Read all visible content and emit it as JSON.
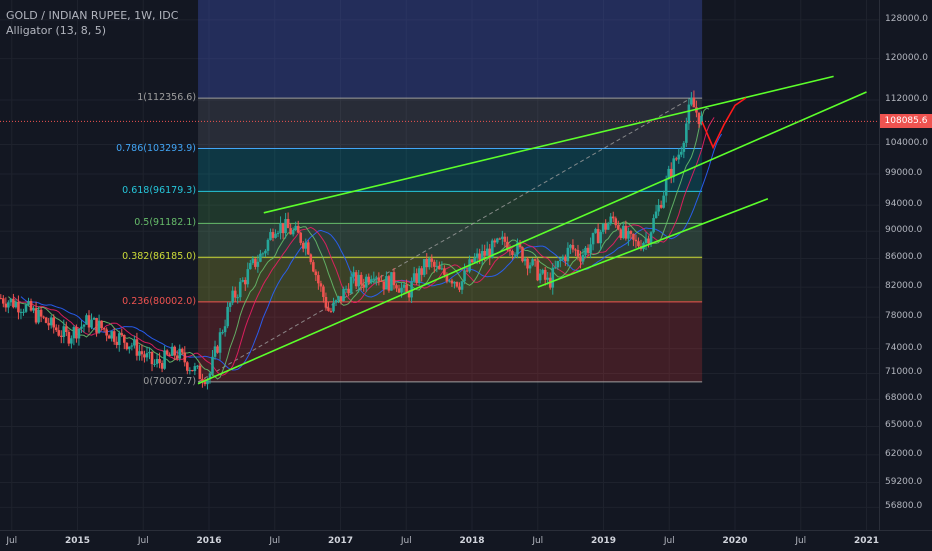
{
  "header": {
    "symbol_line": "GOLD / INDIAN RUPEE, 1W, IDC",
    "indicator_line": "Alligator (13, 8, 5)"
  },
  "price_tag": "108085.6",
  "colors": {
    "background": "#131722",
    "grid": "#1e222d",
    "bull": "#26a69a",
    "bear": "#ef5350",
    "channel": "#5cff2b",
    "projection": "#ff1a1a",
    "jaw": "#2962ff",
    "teeth": "#e91e63",
    "lips": "#66bb6a"
  },
  "chart_data": {
    "type": "candlestick",
    "x_axis": {
      "tick_labels": [
        "Jul",
        "2015",
        "Jul",
        "2016",
        "Jul",
        "2017",
        "Jul",
        "2018",
        "Jul",
        "2019",
        "Jul",
        "2020",
        "Jul",
        "2021"
      ],
      "bold_labels": [
        "2015",
        "2016",
        "2017",
        "2018",
        "2019",
        "2020",
        "2021"
      ],
      "range": [
        "2014-06",
        "2021-02"
      ]
    },
    "y_axis": {
      "scale": "log",
      "tick_labels": [
        "128000.0",
        "120000.0",
        "112000.0",
        "104000.0",
        "99000.0",
        "94000.0",
        "90000.0",
        "86000.0",
        "82000.0",
        "78000.0",
        "74000.0",
        "71000.0",
        "68000.0",
        "65000.0",
        "62000.0",
        "59200.0",
        "56800.0"
      ],
      "ticks": [
        128000,
        120000,
        112000,
        104000,
        99000,
        94000,
        90000,
        86000,
        82000,
        78000,
        74000,
        71000,
        68000,
        65000,
        62000,
        59200,
        56800
      ],
      "range": [
        54300,
        138000
      ]
    },
    "fib_levels": [
      {
        "ratio": 1,
        "price": 112356.6,
        "label": "1(112356.6)",
        "color": "#9e9e9e",
        "band": "#787b86"
      },
      {
        "ratio": 0.786,
        "price": 103293.9,
        "label": "0.786(103293.9)",
        "color": "#42a5f5",
        "band": "#787b86"
      },
      {
        "ratio": 0.618,
        "price": 96179.3,
        "label": "0.618(96179.3)",
        "color": "#26c6da",
        "band": "#00acc1"
      },
      {
        "ratio": 0.5,
        "price": 91182.1,
        "label": "0.5(91182.1)",
        "color": "#66bb6a",
        "band": "#4caf50"
      },
      {
        "ratio": 0.382,
        "price": 86185.0,
        "label": "0.382(86185.0)",
        "color": "#cddc39",
        "band": "#81c784"
      },
      {
        "ratio": 0.236,
        "price": 80002.0,
        "label": "0.236(80002.0)",
        "color": "#ef5350",
        "band": "#cddc39"
      },
      {
        "ratio": 0,
        "price": 70007.7,
        "label": "0(70007.7)",
        "color": "#9e9e9e",
        "band": "#e53935"
      }
    ],
    "fib_range": {
      "from": "2015-12",
      "to": "2019-10",
      "top_from": "2015-09"
    },
    "channels": [
      {
        "name": "upper",
        "from": {
          "x": "2016-06",
          "y": 92800
        },
        "to": {
          "x": "2020-10",
          "y": 116500
        }
      },
      {
        "name": "middle",
        "from": {
          "x": "2015-12",
          "y": 69800
        },
        "to": {
          "x": "2021-01",
          "y": 113500
        }
      },
      {
        "name": "lower",
        "from": {
          "x": "2018-07",
          "y": 82000
        },
        "to": {
          "x": "2020-04",
          "y": 95000
        }
      }
    ],
    "current_price": 108085.6,
    "price_path": [
      [
        "2014-06",
        80500
      ],
      [
        "2014-08",
        79500
      ],
      [
        "2014-10",
        77500
      ],
      [
        "2014-12",
        75500
      ],
      [
        "2015-02",
        77500
      ],
      [
        "2015-04",
        76000
      ],
      [
        "2015-06",
        74500
      ],
      [
        "2015-08",
        72000
      ],
      [
        "2015-10",
        73500
      ],
      [
        "2015-12",
        71000
      ],
      [
        "2016-01",
        70600
      ],
      [
        "2016-02",
        75500
      ],
      [
        "2016-03",
        80000
      ],
      [
        "2016-04",
        82500
      ],
      [
        "2016-05",
        85000
      ],
      [
        "2016-06",
        87000
      ],
      [
        "2016-07",
        91000
      ],
      [
        "2016-08",
        90500
      ],
      [
        "2016-09",
        89500
      ],
      [
        "2016-10",
        88000
      ],
      [
        "2016-11",
        82500
      ],
      [
        "2016-12",
        78500
      ],
      [
        "2017-01",
        80500
      ],
      [
        "2017-02",
        83000
      ],
      [
        "2017-03",
        82500
      ],
      [
        "2017-04",
        84500
      ],
      [
        "2017-05",
        82500
      ],
      [
        "2017-06",
        83000
      ],
      [
        "2017-07",
        80800
      ],
      [
        "2017-08",
        83500
      ],
      [
        "2017-09",
        85500
      ],
      [
        "2017-10",
        84000
      ],
      [
        "2017-11",
        83500
      ],
      [
        "2017-12",
        82500
      ],
      [
        "2018-01",
        85500
      ],
      [
        "2018-02",
        86500
      ],
      [
        "2018-03",
        87500
      ],
      [
        "2018-04",
        88500
      ],
      [
        "2018-05",
        87500
      ],
      [
        "2018-06",
        86000
      ],
      [
        "2018-07",
        84000
      ],
      [
        "2018-08",
        82500
      ],
      [
        "2018-09",
        85500
      ],
      [
        "2018-10",
        87500
      ],
      [
        "2018-11",
        86500
      ],
      [
        "2018-12",
        88500
      ],
      [
        "2019-01",
        90500
      ],
      [
        "2019-02",
        92000
      ],
      [
        "2019-03",
        89000
      ],
      [
        "2019-04",
        88000
      ],
      [
        "2019-05",
        89000
      ],
      [
        "2019-06",
        93500
      ],
      [
        "2019-07",
        99000
      ],
      [
        "2019-08",
        103000
      ],
      [
        "2019-09",
        111500
      ],
      [
        "2019-10",
        108000
      ]
    ],
    "projection_path": [
      [
        "2019-10",
        108000
      ],
      [
        "2019-11",
        103500
      ],
      [
        "2019-12",
        107500
      ],
      [
        "2020-01",
        111000
      ],
      [
        "2020-02",
        112400
      ]
    ]
  }
}
